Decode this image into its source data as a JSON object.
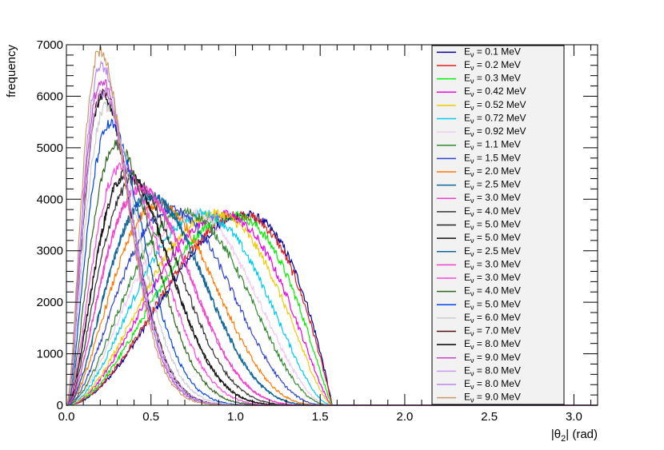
{
  "chart_data": {
    "type": "line",
    "title": "",
    "xlabel": {
      "prefix": "|θ",
      "sub": "2",
      "suffix": "| (rad)"
    },
    "ylabel": "frequency",
    "xlim": [
      0,
      3.14
    ],
    "ylim": [
      0,
      7000
    ],
    "x_ticks": [
      0.0,
      0.5,
      1.0,
      1.5,
      2.0,
      2.5,
      3.0
    ],
    "x_tick_labels": [
      "0.0",
      "0.5",
      "1.0",
      "1.5",
      "2.0",
      "2.5",
      "3.0"
    ],
    "y_ticks": [
      0,
      1000,
      2000,
      3000,
      4000,
      5000,
      6000,
      7000
    ],
    "y_tick_labels": [
      "0",
      "1000",
      "2000",
      "3000",
      "4000",
      "5000",
      "6000",
      "7000"
    ],
    "grid": false,
    "legend_position": "top-right",
    "curve_end_x": 1.5708,
    "series": [
      {
        "name": "0.1 MeV",
        "color": "#000099",
        "peak_x": 1.05,
        "peak_y": 3700
      },
      {
        "name": "0.2 MeV",
        "color": "#dd2222",
        "peak_x": 1.03,
        "peak_y": 3700
      },
      {
        "name": "0.3 MeV",
        "color": "#00ee00",
        "peak_x": 0.98,
        "peak_y": 3700
      },
      {
        "name": "0.42 MeV",
        "color": "#ee00ee",
        "peak_x": 0.92,
        "peak_y": 3700
      },
      {
        "name": "0.52 MeV",
        "color": "#eecc00",
        "peak_x": 0.88,
        "peak_y": 3720
      },
      {
        "name": "0.72 MeV",
        "color": "#00ccee",
        "peak_x": 0.8,
        "peak_y": 3720
      },
      {
        "name": "0.92 MeV",
        "color": "#f0c8f0",
        "peak_x": 0.74,
        "peak_y": 3720
      },
      {
        "name": "1.1 MeV",
        "color": "#338833",
        "peak_x": 0.7,
        "peak_y": 3750
      },
      {
        "name": "1.5 MeV",
        "color": "#3344cc",
        "peak_x": 0.62,
        "peak_y": 3800
      },
      {
        "name": "2.0 MeV",
        "color": "#ff7700",
        "peak_x": 0.55,
        "peak_y": 3900
      },
      {
        "name": "2.5 MeV",
        "color": "#116699",
        "peak_x": 0.5,
        "peak_y": 4050
      },
      {
        "name": "3.0 MeV",
        "color": "#ee44cc",
        "peak_x": 0.44,
        "peak_y": 4200
      },
      {
        "name": "4.0 MeV",
        "color": "#333333",
        "peak_x": 0.4,
        "peak_y": 4350
      },
      {
        "name": "5.0 MeV",
        "color": "#222222",
        "peak_x": 0.36,
        "peak_y": 4500
      },
      {
        "name": "5.0 MeV",
        "color": "#111111",
        "peak_x": 0.36,
        "peak_y": 4500
      },
      {
        "name": "2.5 MeV",
        "color": "#116699",
        "peak_x": 0.5,
        "peak_y": 4050
      },
      {
        "name": "3.0 MeV",
        "color": "#ee44cc",
        "peak_x": 0.44,
        "peak_y": 4200
      },
      {
        "name": "3.0 MeV",
        "color": "#ff44dd",
        "peak_x": 0.33,
        "peak_y": 4650
      },
      {
        "name": "4.0 MeV",
        "color": "#336622",
        "peak_x": 0.3,
        "peak_y": 5050
      },
      {
        "name": "5.0 MeV",
        "color": "#0044ee",
        "peak_x": 0.26,
        "peak_y": 5450
      },
      {
        "name": "6.0 MeV",
        "color": "#cccccc",
        "peak_x": 0.24,
        "peak_y": 5800
      },
      {
        "name": "7.0 MeV",
        "color": "#551111",
        "peak_x": 0.22,
        "peak_y": 6100
      },
      {
        "name": "8.0 MeV",
        "color": "#000000",
        "peak_x": 0.22,
        "peak_y": 6050
      },
      {
        "name": "9.0 MeV",
        "color": "#cc44cc",
        "peak_x": 0.21,
        "peak_y": 6300
      },
      {
        "name": "8.0 MeV",
        "color": "#cc99ee",
        "peak_x": 0.22,
        "peak_y": 6100
      },
      {
        "name": "8.0 MeV",
        "color": "#bb88ee",
        "peak_x": 0.21,
        "peak_y": 6600
      },
      {
        "name": "9.0 MeV",
        "color": "#cc9966",
        "peak_x": 0.2,
        "peak_y": 6900
      }
    ]
  }
}
